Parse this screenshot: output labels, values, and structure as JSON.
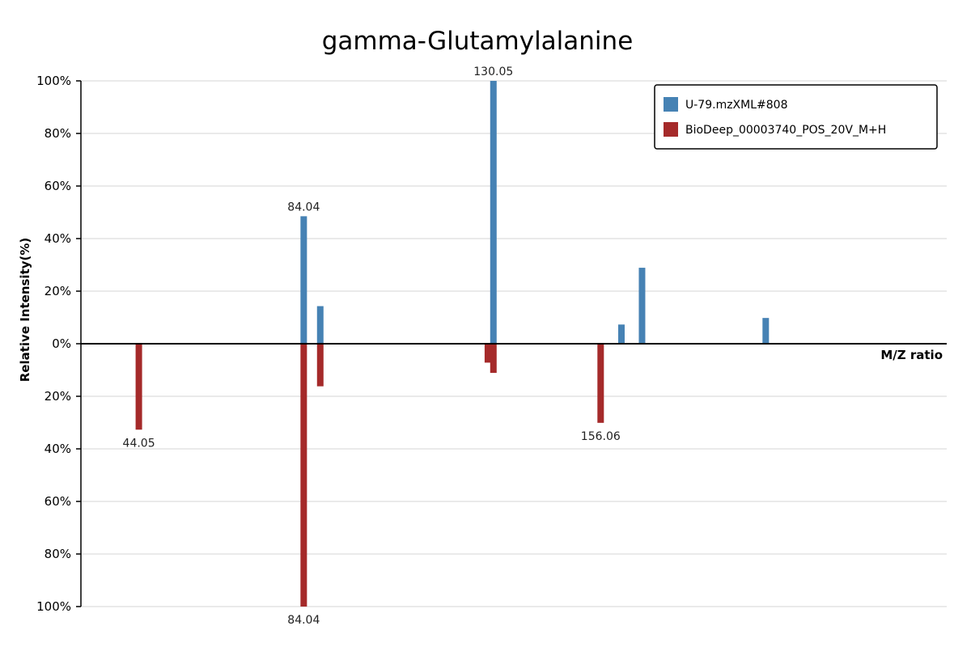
{
  "chart_data": {
    "type": "bar",
    "title": "gamma-Glutamylalanine",
    "xlabel": "M/Z ratio",
    "ylabel": "Relative Intensity(%)",
    "xlim": [
      30,
      240
    ],
    "ylim": [
      -100,
      100
    ],
    "y_ticks": [
      "100%",
      "80%",
      "60%",
      "40%",
      "20%",
      "0%",
      "20%",
      "40%",
      "60%",
      "80%",
      "100%"
    ],
    "grid": true,
    "legend_position": "top-right",
    "series": [
      {
        "name": "U-79.mzXML#808",
        "color": "#4682b4",
        "direction": "up",
        "peaks": [
          {
            "mz": 84.04,
            "intensity": 48.5,
            "label": "84.04"
          },
          {
            "mz": 88.05,
            "intensity": 14.3
          },
          {
            "mz": 130.05,
            "intensity": 100,
            "label": "130.05"
          },
          {
            "mz": 161.1,
            "intensity": 7.3
          },
          {
            "mz": 166.1,
            "intensity": 28.9
          },
          {
            "mz": 196.1,
            "intensity": 9.8
          }
        ]
      },
      {
        "name": "BioDeep_00003740_POS_20V_M+H",
        "color": "#a52a2a",
        "direction": "down",
        "peaks": [
          {
            "mz": 44.05,
            "intensity": 32.7,
            "label": "44.05"
          },
          {
            "mz": 84.04,
            "intensity": 100,
            "label": "84.04"
          },
          {
            "mz": 88.05,
            "intensity": 16.2
          },
          {
            "mz": 128.7,
            "intensity": 7.2
          },
          {
            "mz": 130.05,
            "intensity": 11.1
          },
          {
            "mz": 156.06,
            "intensity": 30.1,
            "label": "156.06"
          }
        ]
      }
    ]
  }
}
